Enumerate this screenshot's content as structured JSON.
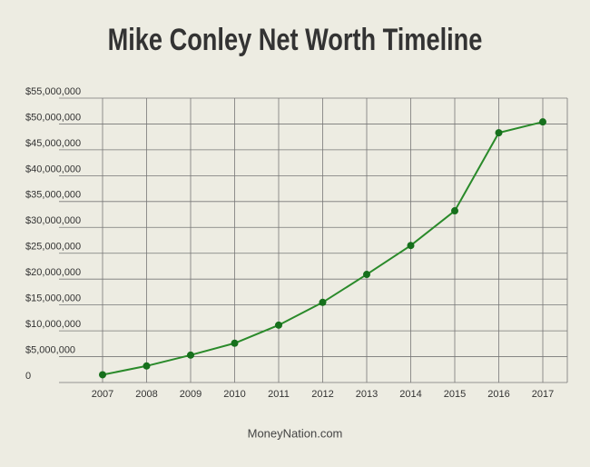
{
  "chart_data": {
    "type": "line",
    "title": "Mike Conley Net Worth Timeline",
    "source": "MoneyNation.com",
    "categories": [
      "2007",
      "2008",
      "2009",
      "2010",
      "2011",
      "2012",
      "2013",
      "2014",
      "2015",
      "2016",
      "2017"
    ],
    "series": [
      {
        "name": "Net Worth",
        "color": "#2a8a2a",
        "marker_color": "#16701c",
        "values": [
          1500000,
          3200000,
          5300000,
          7600000,
          11100000,
          15500000,
          20900000,
          26500000,
          33200000,
          48300000,
          50400000
        ]
      }
    ],
    "ylim": [
      0,
      55000000
    ],
    "yticks": [
      0,
      {
        "value": 5000000,
        "label": "$5,000,000"
      },
      {
        "value": 10000000,
        "label": "$10,000,000"
      },
      {
        "value": 15000000,
        "label": "$15,000,000"
      },
      {
        "value": 20000000,
        "label": "$20,000,000"
      },
      {
        "value": 25000000,
        "label": "$25,000,000"
      },
      {
        "value": 30000000,
        "label": "$30,000,000"
      },
      {
        "value": 35000000,
        "label": "$35,000,000"
      },
      {
        "value": 40000000,
        "label": "$40,000,000"
      },
      {
        "value": 45000000,
        "label": "$45,000,000"
      },
      {
        "value": 50000000,
        "label": "$50,000,000"
      },
      {
        "value": 55000000,
        "label": "$55,000,000"
      }
    ],
    "grid": true
  }
}
